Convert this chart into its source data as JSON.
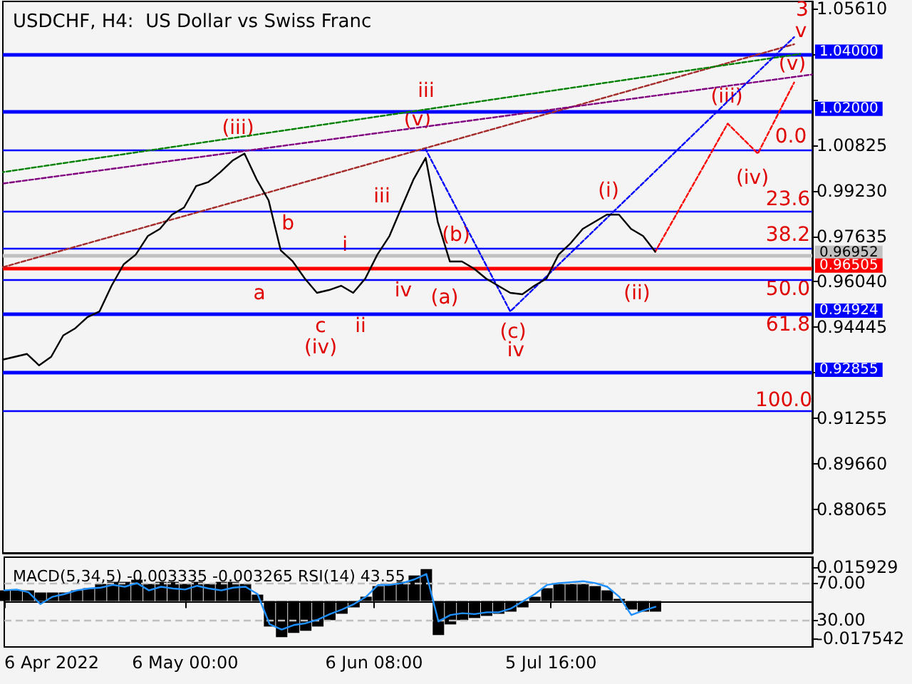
{
  "chart_data": [
    {
      "type": "line",
      "title": "USDCHF, H4:  US Dollar vs Swiss Franc",
      "x": [
        "2022-04-06",
        "2022-04-08",
        "2022-04-10",
        "2022-04-12",
        "2022-04-14",
        "2022-04-16",
        "2022-04-18",
        "2022-04-20",
        "2022-04-22",
        "2022-04-24",
        "2022-04-26",
        "2022-04-28",
        "2022-04-30",
        "2022-05-02",
        "2022-05-04",
        "2022-05-06",
        "2022-05-08",
        "2022-05-10",
        "2022-05-12",
        "2022-05-14",
        "2022-05-16",
        "2022-05-18",
        "2022-05-20",
        "2022-05-22",
        "2022-05-24",
        "2022-05-26",
        "2022-05-28",
        "2022-05-30",
        "2022-06-01",
        "2022-06-03",
        "2022-06-05",
        "2022-06-07",
        "2022-06-09",
        "2022-06-11",
        "2022-06-13",
        "2022-06-15",
        "2022-06-17",
        "2022-06-19",
        "2022-06-21",
        "2022-06-23",
        "2022-06-25",
        "2022-06-27",
        "2022-06-29",
        "2022-07-01",
        "2022-07-03",
        "2022-07-05",
        "2022-07-07",
        "2022-07-09",
        "2022-07-11",
        "2022-07-13",
        "2022-07-15",
        "2022-07-17",
        "2022-07-19",
        "2022-07-21",
        "2022-07-23"
      ],
      "xlim": [
        "2022-04-06",
        "2022-08-18"
      ],
      "ylim": [
        0.8654,
        1.0586
      ],
      "yticks": [
        {
          "value": 1.0561,
          "label": "1.05610"
        },
        {
          "value": 1.04015,
          "label": null
        },
        {
          "value": 1.0242,
          "label": null
        },
        1.00825,
        {
          "value": 0.9923,
          "label": "0.99230"
        },
        0.97635,
        {
          "value": 0.9604,
          "label": "0.96040"
        },
        0.94445,
        {
          "value": 0.9285,
          "label": null
        },
        0.91255,
        {
          "value": 0.8966,
          "label": "0.89660"
        },
        0.88065
      ],
      "tick_labels": "y",
      "marker": "none",
      "line_style": "solid",
      "series": [
        {
          "color": "#000000",
          "values": [
            0.9331,
            0.9341,
            0.9351,
            0.9311,
            0.9341,
            0.9416,
            0.9441,
            0.948,
            0.95,
            0.959,
            0.9665,
            0.9699,
            0.9764,
            0.9789,
            0.9839,
            0.9864,
            0.9939,
            0.9953,
            0.9988,
            1.0028,
            1.0053,
            0.9963,
            0.9889,
            0.9714,
            0.9675,
            0.9615,
            0.9565,
            0.9575,
            0.959,
            0.9565,
            0.9615,
            0.9699,
            0.9764,
            0.9864,
            0.9963,
            1.0038,
            0.9814,
            0.9675,
            0.9675,
            0.965,
            0.9615,
            0.959,
            0.9565,
            0.956,
            0.959,
            0.9615,
            0.9699,
            0.9739,
            0.9789,
            0.9814,
            0.9839,
            0.9839,
            0.9789,
            0.9764,
            0.9709
          ]
        },
        {
          "color": "#ff0000",
          "line_style": "dotted",
          "x": [
            "2022-07-23",
            "2022-08-04",
            "2022-08-09",
            "2022-08-15"
          ],
          "values": [
            0.9709,
            1.0158,
            1.0053,
            1.0302
          ]
        },
        {
          "color": "#0000ff",
          "line_style": "dotted",
          "x": [
            "2022-06-15",
            "2022-06-29",
            "2022-08-15"
          ],
          "values": [
            1.0068,
            0.95,
            1.0461
          ]
        },
        {
          "color": "#008000",
          "line_style": "dotted",
          "x": [
            "2022-04-06",
            "2022-08-16"
          ],
          "values": [
            0.9988,
            1.0402
          ]
        },
        {
          "color": "#800080",
          "line_style": "dotted",
          "x": [
            "2022-04-06",
            "2022-08-18"
          ],
          "values": [
            0.9948,
            1.033
          ]
        },
        {
          "color": "#a52a2a",
          "line_style": "dotted",
          "x": [
            "2022-04-06",
            "2022-08-15"
          ],
          "values": [
            0.9655,
            1.0436
          ]
        }
      ],
      "ref_lines": [
        {
          "axis": "y",
          "value": 1.04,
          "label": "1.04000",
          "color": "#0000ff"
        },
        {
          "axis": "y",
          "value": 1.02,
          "label": "1.02000",
          "color": "#0000ff"
        },
        {
          "axis": "y",
          "value": 1.0068,
          "color": "#0000ff"
        },
        {
          "axis": "y",
          "value": 0.9849,
          "color": "#0000ff"
        },
        {
          "axis": "y",
          "value": 0.9719,
          "color": "#0000ff"
        },
        {
          "axis": "y",
          "value": 0.96952,
          "label": "0.96952",
          "color": "#c0c0c0"
        },
        {
          "axis": "y",
          "value": 0.96505,
          "label": "0.96505",
          "color": "#ff0000"
        },
        {
          "axis": "y",
          "value": 0.961,
          "color": "#0000ff"
        },
        {
          "axis": "y",
          "value": 0.94924,
          "label": "0.94924",
          "color": "#0000ff"
        },
        {
          "axis": "y",
          "value": 0.92855,
          "label": "0.92855",
          "color": "#0000ff"
        },
        {
          "axis": "y",
          "value": 0.9152,
          "color": "#0000ff"
        }
      ],
      "annotations": [
        "(iii)",
        "(v)",
        "iii",
        "(b)",
        "(iii)",
        "(v)",
        "b",
        "(iv)",
        "(a)",
        "(c)",
        "iv",
        "(i)",
        "(ii)",
        "(iv)",
        "v",
        "3",
        "a",
        "c",
        "i",
        "ii",
        "iii",
        "iv",
        "0.0",
        "23.6",
        "38.2",
        "50.0",
        "61.8",
        "100.0"
      ]
    },
    {
      "type": "bar",
      "title": "MACD(5,34,5) -0.003335 -0.003265 RSI(14) 43.55",
      "x": [
        "2022-04-06",
        "2022-04-08",
        "2022-04-10",
        "2022-04-12",
        "2022-04-14",
        "2022-04-16",
        "2022-04-18",
        "2022-04-20",
        "2022-04-22",
        "2022-04-24",
        "2022-04-26",
        "2022-04-28",
        "2022-04-30",
        "2022-05-02",
        "2022-05-04",
        "2022-05-06",
        "2022-05-08",
        "2022-05-10",
        "2022-05-12",
        "2022-05-14",
        "2022-05-16",
        "2022-05-18",
        "2022-05-20",
        "2022-05-22",
        "2022-05-24",
        "2022-05-26",
        "2022-05-28",
        "2022-05-30",
        "2022-06-01",
        "2022-06-03",
        "2022-06-05",
        "2022-06-07",
        "2022-06-09",
        "2022-06-11",
        "2022-06-13",
        "2022-06-15",
        "2022-06-17",
        "2022-06-19",
        "2022-06-21",
        "2022-06-23",
        "2022-06-25",
        "2022-06-27",
        "2022-06-29",
        "2022-07-01",
        "2022-07-03",
        "2022-07-05",
        "2022-07-07",
        "2022-07-09",
        "2022-07-11",
        "2022-07-13",
        "2022-07-15",
        "2022-07-17",
        "2022-07-19",
        "2022-07-21",
        "2022-07-23"
      ],
      "xlim": [
        "2022-04-06",
        "2022-08-18"
      ],
      "xticks": [
        {
          "value": "2022-04-06",
          "label": "6 Apr 2022"
        },
        {
          "value": "2022-05-06T00:00",
          "label": "6 May 00:00"
        },
        {
          "value": "2022-06-06T08:00",
          "label": "6 Jun 08:00"
        },
        {
          "value": "2022-07-05T16:00",
          "label": "5 Jul 16:00"
        }
      ],
      "ylim": [
        -0.0216,
        0.0206
      ],
      "yticks": [
        -0.017542,
        0.015929
      ],
      "y2lim": [
        0,
        98.4
      ],
      "y2ticks": [
        {
          "value": 30,
          "label": "30.00"
        },
        {
          "value": 70,
          "label": "70.00"
        }
      ],
      "marker": "none",
      "line_style": "solid",
      "series": [
        {
          "color": "#000000",
          "values": [
            0.005,
            0.005,
            0.005,
            0.004,
            0.004,
            0.004,
            0.005,
            0.006,
            0.008,
            0.009,
            0.009,
            0.01,
            0.008,
            0.009,
            0.009,
            0.008,
            0.009,
            0.008,
            0.009,
            0.009,
            0.008,
            0.003,
            -0.012,
            -0.017,
            -0.015,
            -0.014,
            -0.012,
            -0.009,
            -0.006,
            -0.003,
            0.002,
            0.007,
            0.008,
            0.009,
            0.012,
            0.015,
            -0.016,
            -0.011,
            -0.009,
            -0.008,
            -0.007,
            -0.006,
            -0.005,
            -0.003,
            0.002,
            0.006,
            0.008,
            0.008,
            0.008,
            0.007,
            0.005,
            0.001,
            -0.004,
            -0.005,
            -0.005
          ]
        },
        {
          "type": "line",
          "axis": "y2",
          "color": "#1e90ff",
          "values": [
            62,
            63,
            60,
            47,
            55,
            58,
            62,
            64,
            65,
            68,
            66,
            70,
            62,
            66,
            64,
            63,
            67,
            64,
            62,
            65,
            66,
            58,
            25,
            19,
            24,
            26,
            30,
            36,
            41,
            47,
            55,
            68,
            68,
            70,
            74,
            80,
            28,
            35,
            37,
            36,
            38,
            38,
            42,
            50,
            58,
            68,
            70,
            71,
            72,
            70,
            66,
            55,
            35,
            40,
            44
          ]
        }
      ],
      "ref_lines": [
        {
          "axis": "y2",
          "value": 70,
          "color": "#c0c0c0",
          "line_style": "dashed"
        },
        {
          "axis": "y2",
          "value": 30,
          "color": "#c0c0c0",
          "line_style": "dashed"
        }
      ]
    }
  ]
}
